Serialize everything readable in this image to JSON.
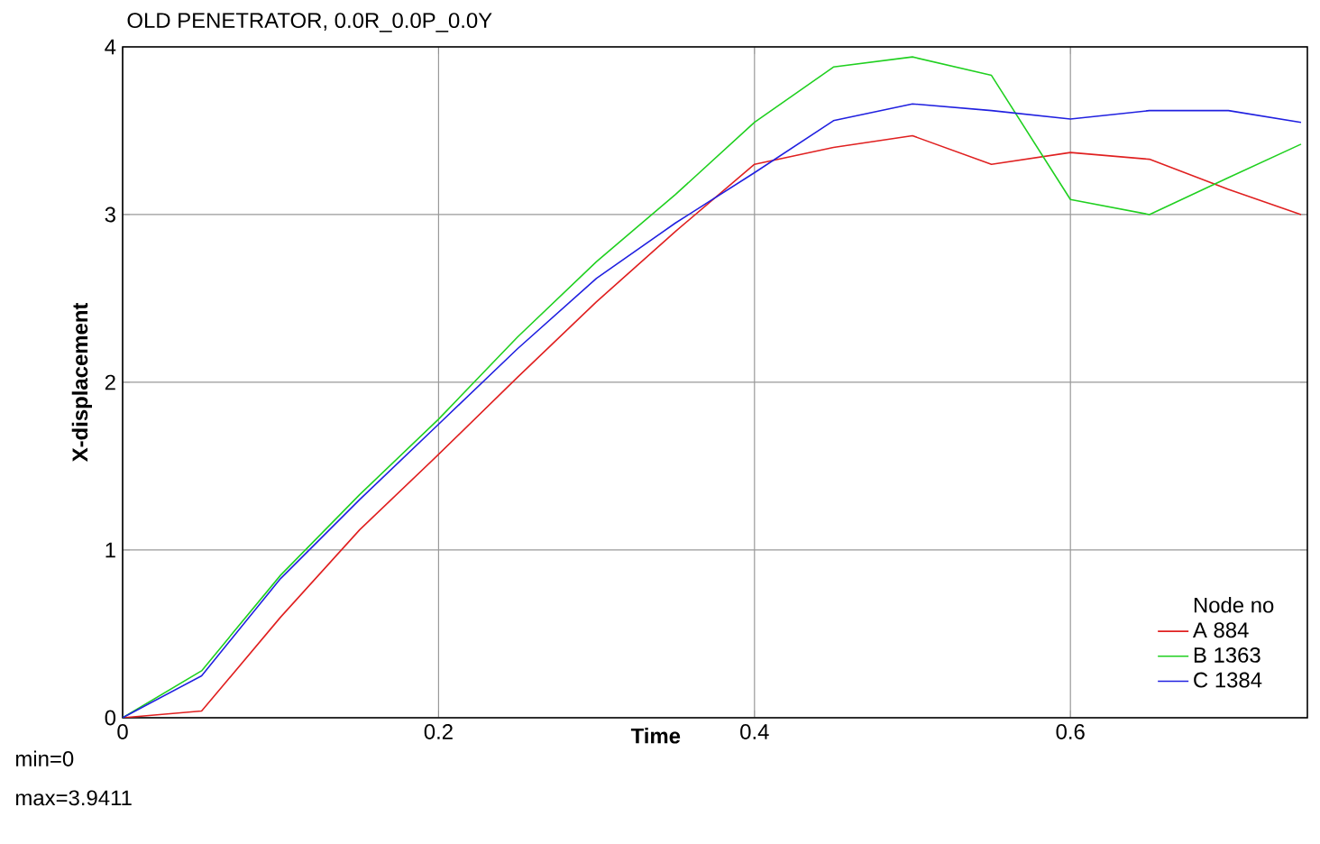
{
  "chart_data": {
    "type": "line",
    "title": "OLD PENETRATOR, 0.0R_0.0P_0.0Y",
    "xlabel": "Time",
    "ylabel": "X-displacement",
    "legend_title": "Node no",
    "annotations": [
      "min=0",
      "max=3.9411"
    ],
    "x": [
      0,
      0.05,
      0.1,
      0.15,
      0.2,
      0.25,
      0.3,
      0.35,
      0.4,
      0.45,
      0.5,
      0.55,
      0.6,
      0.65,
      0.7,
      0.746
    ],
    "series": [
      {
        "name": "A 884",
        "color": "#e02020",
        "values": [
          0,
          0.04,
          0.6,
          1.12,
          1.57,
          2.03,
          2.48,
          2.9,
          3.3,
          3.4,
          3.47,
          3.3,
          3.37,
          3.33,
          3.15,
          3.0
        ]
      },
      {
        "name": "B 1363",
        "color": "#20d020",
        "values": [
          0,
          0.28,
          0.85,
          1.33,
          1.78,
          2.27,
          2.72,
          3.12,
          3.55,
          3.88,
          3.94,
          3.83,
          3.09,
          3.0,
          3.22,
          3.42
        ]
      },
      {
        "name": "C 1384",
        "color": "#2020e0",
        "values": [
          0,
          0.25,
          0.83,
          1.3,
          1.75,
          2.2,
          2.62,
          2.95,
          3.25,
          3.56,
          3.66,
          3.62,
          3.57,
          3.62,
          3.62,
          3.55
        ]
      }
    ],
    "xlim": [
      0,
      0.75
    ],
    "ylim": [
      0,
      4
    ],
    "xticks": [
      0,
      0.2,
      0.4,
      0.6
    ],
    "yticks": [
      0,
      1,
      2,
      3,
      4
    ],
    "grid": true,
    "legend": "bottom right",
    "marker": "none",
    "line_style": "solid"
  }
}
